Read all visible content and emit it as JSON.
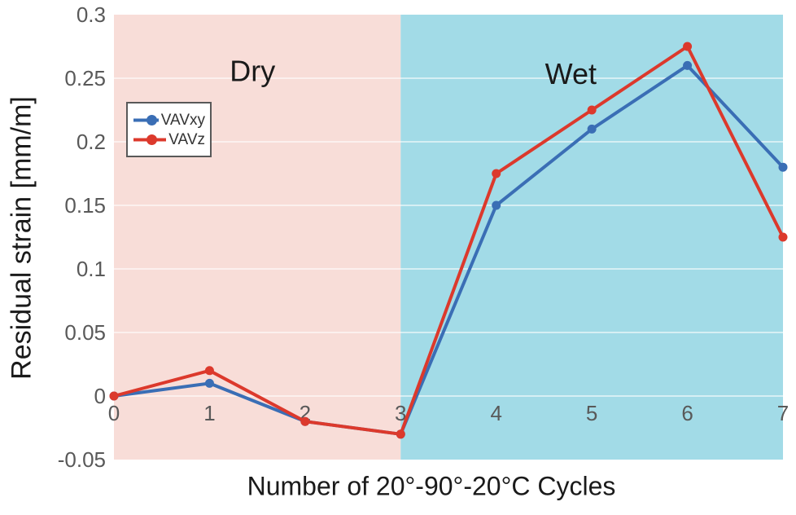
{
  "chart_data": {
    "type": "line",
    "x": [
      0,
      1,
      2,
      3,
      4,
      5,
      6,
      7
    ],
    "series": [
      {
        "name": "VAVxy",
        "color": "#3a6eb5",
        "values": [
          0,
          0.01,
          -0.02,
          -0.03,
          0.15,
          0.21,
          0.26,
          0.18
        ]
      },
      {
        "name": "VAVz",
        "color": "#dc392c",
        "values": [
          0,
          0.02,
          -0.02,
          -0.03,
          0.175,
          0.225,
          0.275,
          0.125
        ]
      }
    ],
    "title": "",
    "xlabel": "Number of 20°-90°-20°C Cycles",
    "ylabel": "Residual strain [mm/m]",
    "xlim": [
      0,
      7
    ],
    "ylim": [
      -0.05,
      0.3
    ],
    "xticks": [
      0,
      1,
      2,
      3,
      4,
      5,
      6,
      7
    ],
    "xtick_labels": [
      "0",
      "1",
      "2",
      "3",
      "4",
      "5",
      "6",
      "7"
    ],
    "yticks": [
      -0.05,
      0,
      0.05,
      0.1,
      0.15,
      0.2,
      0.25,
      0.3
    ],
    "ytick_labels": [
      "-0.05",
      "0",
      "0.05",
      "0.1",
      "0.15",
      "0.2",
      "0.25",
      "0.3"
    ],
    "grid": true,
    "legend": {
      "position": "upper-left",
      "entries": [
        "VAVxy",
        "VAVz"
      ]
    },
    "regions": [
      {
        "label": "Dry",
        "from": 0,
        "to": 3,
        "color": "#f8ddd8",
        "label_x": 1.45,
        "label_y": 0.256
      },
      {
        "label": "Wet",
        "from": 3,
        "to": 7,
        "color": "#a2dbe7",
        "label_x": 4.78,
        "label_y": 0.254
      }
    ],
    "colors": {
      "gridline": "#ffffff",
      "tick_label": "#595959",
      "axis_title": "#1a1a1a",
      "legend_border": "#595959",
      "background": "#ffffff"
    }
  }
}
